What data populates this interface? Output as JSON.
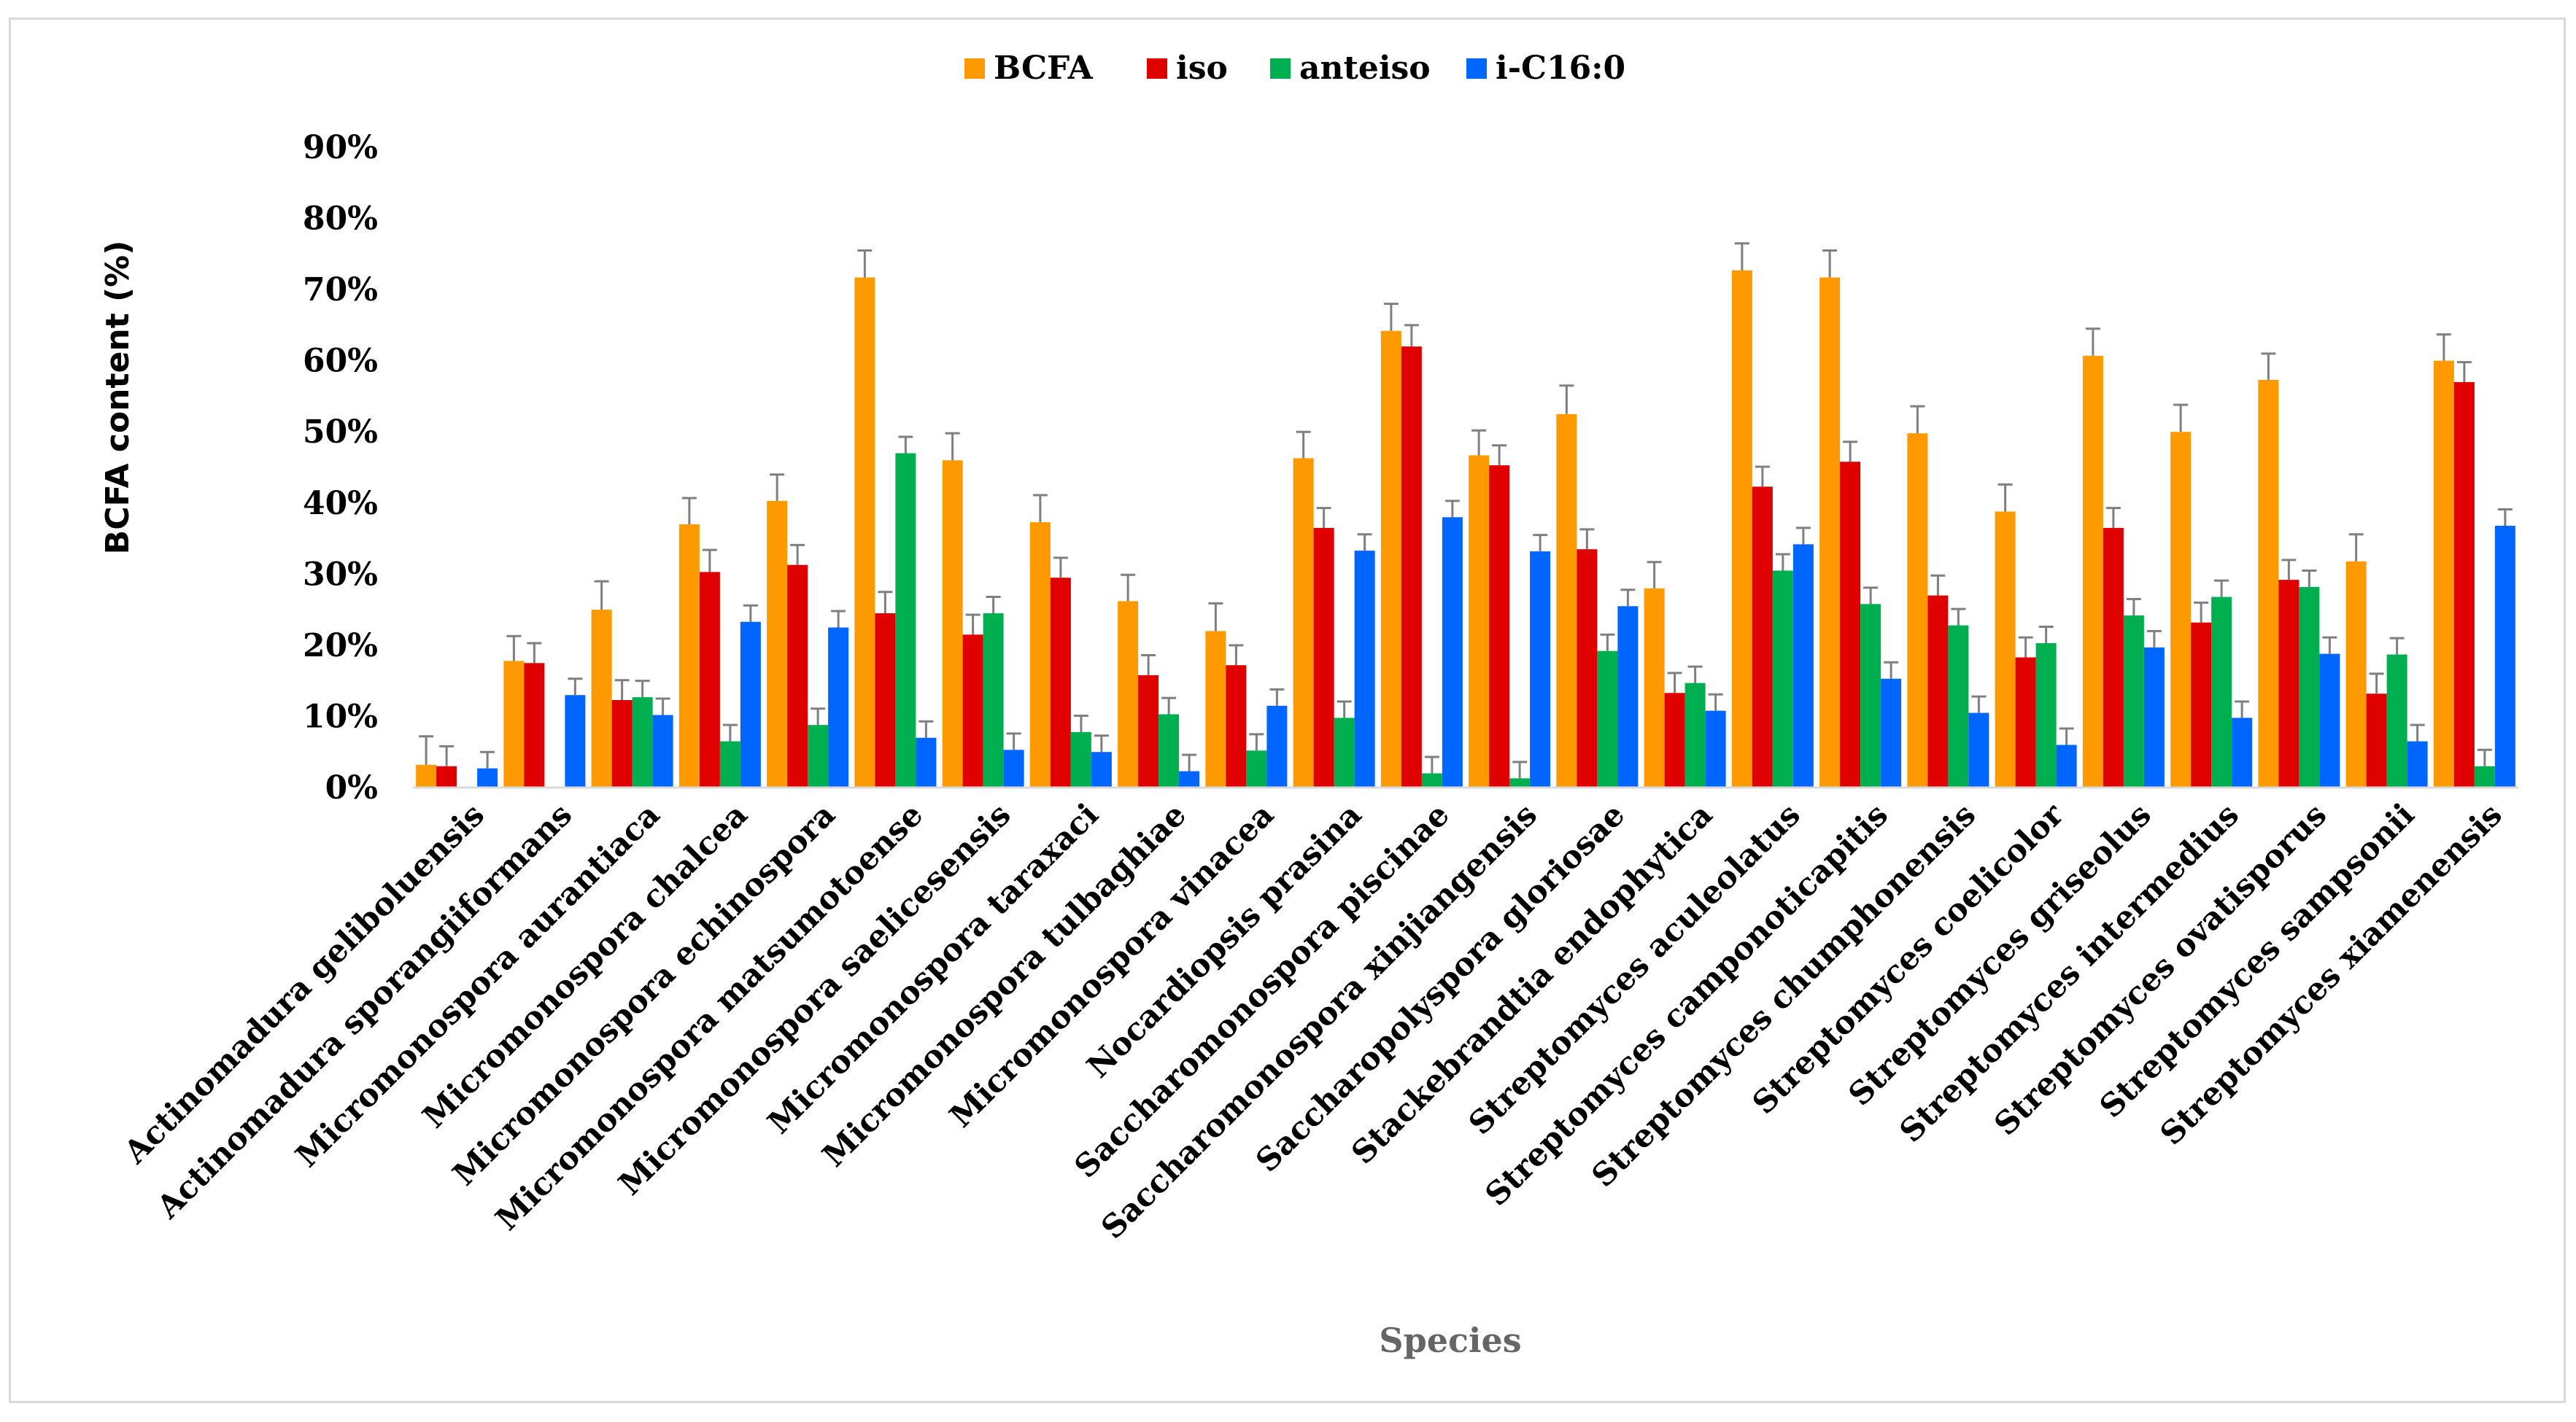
{
  "chart_data": {
    "type": "bar",
    "title": "",
    "xlabel": "Species",
    "ylabel": "BCFA content (%)",
    "ylim": [
      0,
      90
    ],
    "yticks": [
      "0%",
      "10%",
      "20%",
      "30%",
      "40%",
      "50%",
      "60%",
      "70%",
      "80%",
      "90%"
    ],
    "grid": false,
    "legend_position": "top-center",
    "categories": [
      "Actinomadura geliboluensis",
      "Actinomadura sporangiiformans",
      "Micromonospora aurantiaca",
      "Micromonospora chalcea",
      "Micromonospora echinospora",
      "Micromonospora matsumotoense",
      "Micromonospora saelicesensis",
      "Micromonospora taraxaci",
      "Micromonospora tulbaghiae",
      "Micromonospora vinacea",
      "Nocardiopsis prasina",
      "Saccharomonospora piscinae",
      "Saccharomonospora xinjiangensis",
      "Saccharopolyspora gloriosae",
      "Stackebrandtia endophytica",
      "Streptomyces aculeolatus",
      "Streptomyces camponoticapitis",
      "Streptomyces chumphonensis",
      "Streptomyces coelicolor",
      "Streptomyces griseolus",
      "Streptomyces intermedius",
      "Streptomyces ovatisporus",
      "Streptomyces sampsonii",
      "Streptomyces xiamenensis"
    ],
    "series": [
      {
        "name": "BCFA",
        "color": "#FF9900",
        "values": [
          3.2,
          17.8,
          25.0,
          37.0,
          40.3,
          71.7,
          46.0,
          37.3,
          26.2,
          22.0,
          46.3,
          64.2,
          46.7,
          52.5,
          28.0,
          72.7,
          71.7,
          49.8,
          38.8,
          60.7,
          50.0,
          57.3,
          31.8,
          60.0
        ],
        "errors": [
          4.0,
          3.5,
          4.0,
          3.7,
          3.7,
          3.8,
          3.8,
          3.8,
          3.7,
          3.9,
          3.7,
          3.8,
          3.5,
          4.0,
          3.7,
          3.8,
          3.8,
          3.8,
          3.8,
          3.8,
          3.8,
          3.7,
          3.8,
          3.7
        ]
      },
      {
        "name": "iso",
        "color": "#E00000",
        "values": [
          3.0,
          17.5,
          12.3,
          30.3,
          31.3,
          24.5,
          21.5,
          29.5,
          15.8,
          17.2,
          36.5,
          62.0,
          45.3,
          33.5,
          13.3,
          42.3,
          45.8,
          27.0,
          18.3,
          36.5,
          23.2,
          29.2,
          13.2,
          57.0
        ],
        "errors": [
          2.8,
          2.8,
          2.8,
          3.1,
          2.8,
          3.0,
          2.8,
          2.8,
          2.8,
          2.8,
          2.8,
          3.0,
          2.8,
          2.8,
          2.8,
          2.8,
          2.8,
          2.8,
          2.8,
          2.8,
          2.8,
          2.8,
          2.8,
          2.8
        ]
      },
      {
        "name": "anteiso",
        "color": "#00B050",
        "values": [
          0,
          0,
          12.7,
          6.5,
          8.8,
          47.0,
          24.5,
          7.8,
          10.3,
          5.2,
          9.8,
          2.0,
          1.3,
          19.2,
          14.7,
          30.5,
          25.8,
          22.8,
          20.3,
          24.2,
          26.8,
          28.2,
          18.7,
          3.0
        ],
        "errors": [
          0,
          0,
          2.3,
          2.3,
          2.3,
          2.3,
          2.3,
          2.3,
          2.3,
          2.3,
          2.3,
          2.3,
          2.3,
          2.3,
          2.3,
          2.3,
          2.3,
          2.3,
          2.3,
          2.3,
          2.3,
          2.3,
          2.3,
          2.3
        ]
      },
      {
        "name": "i-C16:0",
        "color": "#0066FF",
        "values": [
          2.7,
          13.0,
          10.2,
          23.3,
          22.5,
          7.0,
          5.3,
          5.0,
          2.3,
          11.5,
          33.3,
          38.0,
          33.2,
          25.5,
          10.8,
          34.2,
          15.3,
          10.5,
          6.0,
          19.7,
          9.8,
          18.8,
          6.5,
          36.8
        ],
        "errors": [
          2.3,
          2.3,
          2.3,
          2.3,
          2.3,
          2.3,
          2.3,
          2.3,
          2.3,
          2.3,
          2.3,
          2.3,
          2.3,
          2.3,
          2.3,
          2.3,
          2.3,
          2.3,
          2.3,
          2.3,
          2.3,
          2.3,
          2.3,
          2.3
        ]
      }
    ]
  }
}
